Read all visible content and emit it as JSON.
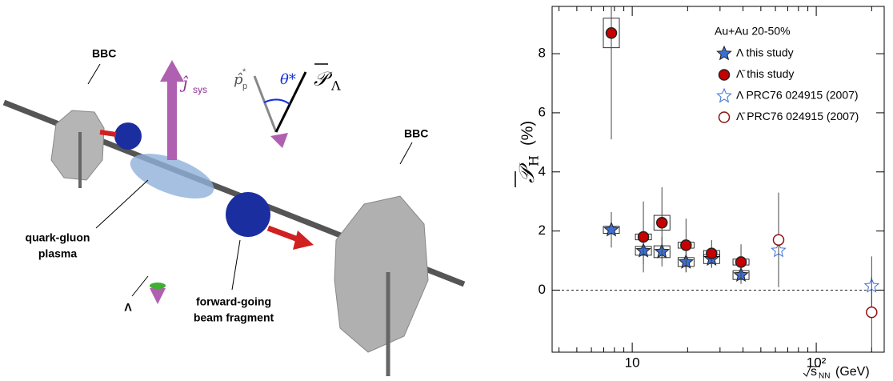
{
  "diagram": {
    "bbc_left": "BBC",
    "bbc_right": "BBC",
    "qgp_line1": "quark-gluon",
    "qgp_line2": "plasma",
    "lambda": "Λ",
    "fragment_line1": "forward-going",
    "fragment_line2": "beam fragment",
    "j_symbol": "ĵ",
    "j_sub": "sys",
    "p_symbol": "p̂",
    "p_sub": "p",
    "p_sup": "*",
    "theta": "θ*",
    "pol_symbol": "𝒫",
    "pol_sub": "Λ"
  },
  "chart_data": {
    "type": "scatter",
    "xlog": true,
    "xlim": [
      3.67,
      234
    ],
    "ylim": [
      -2.1,
      9.6
    ],
    "xticks": [
      10,
      {
        "value": 100,
        "label": "10²"
      }
    ],
    "xminorticks": [
      4,
      5,
      6,
      7,
      8,
      9,
      20,
      30,
      40,
      50,
      60,
      70,
      80,
      90,
      200
    ],
    "yticks": [
      0,
      2,
      4,
      6,
      8
    ],
    "hline": 0,
    "ylabel_symbol": "𝒫",
    "ylabel_sub": "H",
    "ylabel_unit": "(%)",
    "xlabel_symbol": "s",
    "xlabel_sub": "NN",
    "xlabel_unit": "(GeV)",
    "legend_title": "Au+Au 20-50%",
    "legend": "upper right",
    "series": [
      {
        "name": "Λ this study",
        "marker": "star",
        "filled": true,
        "color": "#3b6fd6",
        "x": [
          7.7,
          11.5,
          14.5,
          19.6,
          27,
          39
        ],
        "values": [
          2.04,
          1.33,
          1.3,
          0.95,
          1.05,
          0.51
        ],
        "errors": [
          0.6,
          0.45,
          0.5,
          0.35,
          0.3,
          0.3
        ],
        "sys_errors": [
          0.12,
          0.15,
          0.2,
          0.15,
          0.15,
          0.15
        ]
      },
      {
        "name": "Λ̄ this study",
        "marker": "circle",
        "filled": true,
        "color": "#c80000",
        "x": [
          7.7,
          11.5,
          14.5,
          19.6,
          27,
          39
        ],
        "values": [
          8.7,
          1.8,
          2.28,
          1.52,
          1.24,
          0.95
        ],
        "errors": [
          3.6,
          1.2,
          1.2,
          0.9,
          0.45,
          0.6
        ],
        "sys_errors": [
          0.5,
          0.1,
          0.25,
          0.1,
          0.1,
          0.1
        ]
      },
      {
        "name": "Λ PRC76 024915 (2007)",
        "marker": "star",
        "filled": false,
        "color": "#3b6fd6",
        "x": [
          62.4,
          200
        ],
        "values": [
          1.34,
          0.14
        ],
        "errors": [
          1.2,
          1.0
        ]
      },
      {
        "name": "Λ̄ PRC76 024915 (2007)",
        "marker": "circle",
        "filled": false,
        "color": "#8b1010",
        "x": [
          62.4,
          200
        ],
        "values": [
          1.7,
          -0.75
        ],
        "errors": [
          1.6,
          1.2
        ]
      }
    ]
  }
}
